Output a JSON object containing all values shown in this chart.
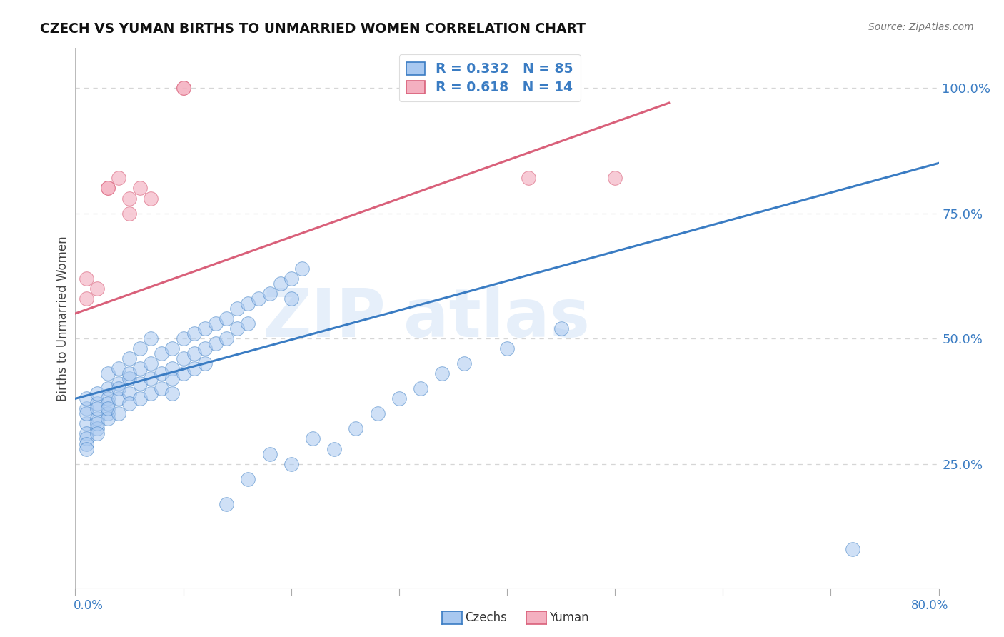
{
  "title": "CZECH VS YUMAN BIRTHS TO UNMARRIED WOMEN CORRELATION CHART",
  "source": "Source: ZipAtlas.com",
  "ylabel": "Births to Unmarried Women",
  "ytick_labels": [
    "25.0%",
    "50.0%",
    "75.0%",
    "100.0%"
  ],
  "ytick_values": [
    0.25,
    0.5,
    0.75,
    1.0
  ],
  "xmin": 0.0,
  "xmax": 0.8,
  "ymin": 0.0,
  "ymax": 1.08,
  "czechs_color": "#A8C8F0",
  "yuman_color": "#F4B0C0",
  "czechs_line_color": "#3A7CC3",
  "yuman_line_color": "#D9607A",
  "czechs_R": 0.332,
  "czechs_N": 85,
  "yuman_R": 0.618,
  "yuman_N": 14,
  "czechs_scatter": [
    [
      0.01,
      0.36
    ],
    [
      0.01,
      0.33
    ],
    [
      0.01,
      0.38
    ],
    [
      0.01,
      0.35
    ],
    [
      0.01,
      0.31
    ],
    [
      0.01,
      0.3
    ],
    [
      0.01,
      0.29
    ],
    [
      0.01,
      0.28
    ],
    [
      0.02,
      0.37
    ],
    [
      0.02,
      0.34
    ],
    [
      0.02,
      0.32
    ],
    [
      0.02,
      0.36
    ],
    [
      0.02,
      0.39
    ],
    [
      0.02,
      0.33
    ],
    [
      0.02,
      0.31
    ],
    [
      0.03,
      0.4
    ],
    [
      0.03,
      0.35
    ],
    [
      0.03,
      0.38
    ],
    [
      0.03,
      0.43
    ],
    [
      0.03,
      0.37
    ],
    [
      0.03,
      0.34
    ],
    [
      0.03,
      0.36
    ],
    [
      0.04,
      0.41
    ],
    [
      0.04,
      0.44
    ],
    [
      0.04,
      0.38
    ],
    [
      0.04,
      0.35
    ],
    [
      0.04,
      0.4
    ],
    [
      0.05,
      0.42
    ],
    [
      0.05,
      0.46
    ],
    [
      0.05,
      0.39
    ],
    [
      0.05,
      0.37
    ],
    [
      0.05,
      0.43
    ],
    [
      0.06,
      0.44
    ],
    [
      0.06,
      0.48
    ],
    [
      0.06,
      0.41
    ],
    [
      0.06,
      0.38
    ],
    [
      0.07,
      0.5
    ],
    [
      0.07,
      0.45
    ],
    [
      0.07,
      0.42
    ],
    [
      0.07,
      0.39
    ],
    [
      0.08,
      0.47
    ],
    [
      0.08,
      0.43
    ],
    [
      0.08,
      0.4
    ],
    [
      0.09,
      0.48
    ],
    [
      0.09,
      0.44
    ],
    [
      0.09,
      0.42
    ],
    [
      0.09,
      0.39
    ],
    [
      0.1,
      0.5
    ],
    [
      0.1,
      0.46
    ],
    [
      0.1,
      0.43
    ],
    [
      0.11,
      0.51
    ],
    [
      0.11,
      0.47
    ],
    [
      0.11,
      0.44
    ],
    [
      0.12,
      0.52
    ],
    [
      0.12,
      0.48
    ],
    [
      0.12,
      0.45
    ],
    [
      0.13,
      0.53
    ],
    [
      0.13,
      0.49
    ],
    [
      0.14,
      0.54
    ],
    [
      0.14,
      0.5
    ],
    [
      0.15,
      0.56
    ],
    [
      0.15,
      0.52
    ],
    [
      0.16,
      0.57
    ],
    [
      0.16,
      0.53
    ],
    [
      0.17,
      0.58
    ],
    [
      0.18,
      0.59
    ],
    [
      0.19,
      0.61
    ],
    [
      0.2,
      0.62
    ],
    [
      0.2,
      0.58
    ],
    [
      0.21,
      0.64
    ],
    [
      0.14,
      0.17
    ],
    [
      0.16,
      0.22
    ],
    [
      0.18,
      0.27
    ],
    [
      0.2,
      0.25
    ],
    [
      0.22,
      0.3
    ],
    [
      0.24,
      0.28
    ],
    [
      0.26,
      0.32
    ],
    [
      0.28,
      0.35
    ],
    [
      0.3,
      0.38
    ],
    [
      0.32,
      0.4
    ],
    [
      0.34,
      0.43
    ],
    [
      0.36,
      0.45
    ],
    [
      0.4,
      0.48
    ],
    [
      0.45,
      0.52
    ],
    [
      0.72,
      0.08
    ]
  ],
  "yuman_scatter": [
    [
      0.01,
      0.58
    ],
    [
      0.01,
      0.62
    ],
    [
      0.02,
      0.6
    ],
    [
      0.03,
      0.8
    ],
    [
      0.03,
      0.8
    ],
    [
      0.04,
      0.82
    ],
    [
      0.05,
      0.75
    ],
    [
      0.05,
      0.78
    ],
    [
      0.06,
      0.8
    ],
    [
      0.07,
      0.78
    ],
    [
      0.5,
      0.82
    ],
    [
      0.1,
      1.0
    ],
    [
      0.1,
      1.0
    ],
    [
      0.42,
      0.82
    ]
  ],
  "czechs_trend_x": [
    0.0,
    0.8
  ],
  "czechs_trend_y": [
    0.38,
    0.85
  ],
  "yuman_trend_x": [
    0.0,
    0.55
  ],
  "yuman_trend_y": [
    0.55,
    0.97
  ],
  "grid_color": "#CCCCCC",
  "bg_color": "#FFFFFF"
}
